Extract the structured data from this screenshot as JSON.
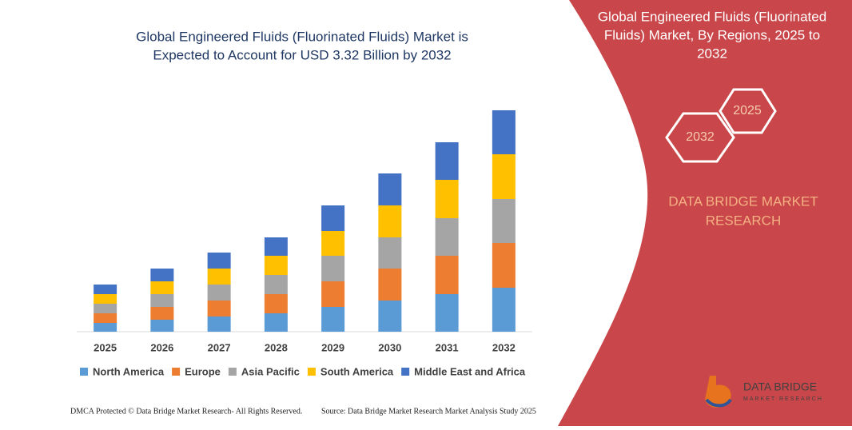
{
  "chart_data": {
    "type": "stacked_bar",
    "title": "Global Engineered Fluids (Fluorinated Fluids) Market is Expected to Account for USD 3.32 Billion by 2032",
    "categories": [
      "2025",
      "2026",
      "2027",
      "2028",
      "2029",
      "2030",
      "2031",
      "2032"
    ],
    "series": [
      {
        "name": "North America",
        "color": "#5b9bd5",
        "values": [
          11,
          15,
          19,
          23,
          31,
          39,
          47,
          55
        ]
      },
      {
        "name": "Europe",
        "color": "#ed7d31",
        "values": [
          12,
          16,
          20,
          24,
          32,
          40,
          48,
          56
        ]
      },
      {
        "name": "Asia Pacific",
        "color": "#a5a5a5",
        "values": [
          12,
          16,
          20,
          24,
          32,
          39,
          47,
          55
        ]
      },
      {
        "name": "South America",
        "color": "#ffc000",
        "values": [
          12,
          16,
          20,
          24,
          31,
          40,
          48,
          56
        ]
      },
      {
        "name": "Middle East and Africa",
        "color": "#4472c4",
        "values": [
          12,
          16,
          20,
          23,
          32,
          40,
          47,
          55
        ]
      }
    ],
    "legend": "bottom"
  },
  "panel": {
    "title": [
      "Global Engineered Fluids (Fluorinated",
      "Fluids) Market, By Regions, 2025 to",
      "2032"
    ],
    "hex_start": "2025",
    "hex_end": "2032",
    "brand": [
      "DATA BRIDGE MARKET",
      "RESEARCH"
    ]
  },
  "logo": {
    "name": "DATA BRIDGE",
    "tagline": "MARKET RESEARCH"
  },
  "footer": {
    "left": "DMCA Protected © Data Bridge Market Research- All Rights Reserved.",
    "right": "Source: Data Bridge Market Research Market Analysis Study 2025"
  }
}
